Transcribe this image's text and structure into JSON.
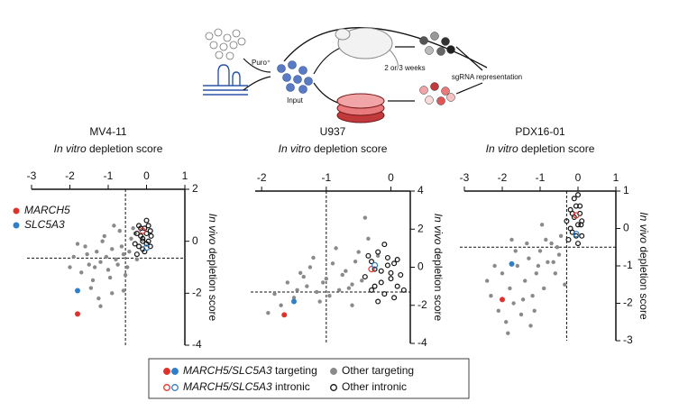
{
  "diagram": {
    "puro": "Puro⁺",
    "input": "Input",
    "weeks": "2 or 3 weeks",
    "readout": "sgRNA representation"
  },
  "chart_data": [
    {
      "type": "scatter",
      "title": "MV4-11",
      "xlabel_italic": "In vitro",
      "xlabel": "depletion score",
      "ylabel_italic": "In vivo",
      "ylabel": "depletion score",
      "xlim": [
        -3,
        1
      ],
      "xticks": [
        -3,
        -2,
        -1,
        0,
        1
      ],
      "ylim": [
        -4,
        2
      ],
      "yticks": [
        -4,
        -2,
        0,
        2
      ],
      "vline": -0.55,
      "hline": -0.65,
      "legend": "upper left",
      "series": [
        {
          "color": "#8a8a8a",
          "filled": true,
          "x": [
            -1.9,
            -1.7,
            -1.6,
            -1.5,
            -1.4,
            -1.3,
            -1.2,
            -1.1,
            -1.0,
            -0.9,
            -0.8,
            -0.7,
            -0.6,
            -0.5,
            -0.4,
            -1.8,
            -1.45,
            -1.25,
            -1.05,
            -0.95,
            -0.85,
            -0.75,
            -0.65,
            -0.55,
            -0.45,
            -1.35,
            -1.15,
            -0.35,
            -0.25,
            -2.0,
            -1.55,
            -0.6,
            -0.9,
            -1.2,
            -0.3
          ],
          "values": [
            -0.6,
            -1.2,
            -0.2,
            -0.9,
            -1.5,
            -0.4,
            -0.8,
            0.2,
            -1.1,
            -0.3,
            -0.7,
            0.4,
            -0.5,
            -1.0,
            0.1,
            -0.1,
            -1.8,
            -2.2,
            -0.6,
            -1.4,
            0.6,
            -0.9,
            -0.2,
            -1.3,
            -0.4,
            -1.0,
            0.0,
            0.5,
            -0.7,
            -1.0,
            -0.5,
            -1.9,
            -2.0,
            -2.5,
            0.3
          ]
        },
        {
          "color": "#111111",
          "filled": false,
          "x": [
            -0.25,
            -0.2,
            -0.15,
            -0.1,
            -0.05,
            0,
            0.05,
            0.1,
            -0.3,
            -0.2,
            -0.1,
            0,
            0.05,
            -0.15,
            -0.05,
            0.1,
            -0.25,
            0,
            -0.1,
            0.12
          ],
          "values": [
            0.3,
            -0.2,
            0.5,
            0.1,
            -0.4,
            0.3,
            0.0,
            0.4,
            -0.1,
            0.6,
            -0.3,
            -0.1,
            0.6,
            0.2,
            0.5,
            -0.2,
            -0.5,
            0.8,
            0.0,
            0.2
          ]
        },
        {
          "name": "MARCH5",
          "color": "#e0322b",
          "filled": true,
          "x": [
            -1.8
          ],
          "values": [
            -2.8
          ]
        },
        {
          "name": "SLC5A3",
          "color": "#2f7fc8",
          "filled": true,
          "x": [
            -1.8
          ],
          "values": [
            -1.9
          ]
        },
        {
          "color": "#e0322b",
          "filled": false,
          "x": [
            -0.1
          ],
          "values": [
            0.4
          ]
        },
        {
          "color": "#2f7fc8",
          "filled": false,
          "x": [
            0
          ],
          "values": [
            -0.25
          ]
        }
      ]
    },
    {
      "type": "scatter",
      "title": "U937",
      "xlabel_italic": "In vitro",
      "xlabel": "depletion score",
      "ylabel_italic": "In vivo",
      "ylabel": "depletion score",
      "xlim": [
        -2.1,
        0.3
      ],
      "xticks": [
        -2,
        -1,
        0
      ],
      "ylim": [
        -4,
        4
      ],
      "yticks": [
        -4,
        -2,
        0,
        2,
        4
      ],
      "vline": -1,
      "hline": -1.3,
      "series": [
        {
          "color": "#8a8a8a",
          "filled": true,
          "x": [
            -1.8,
            -1.6,
            -1.5,
            -1.4,
            -1.3,
            -1.2,
            -1.1,
            -1.0,
            -0.9,
            -0.8,
            -0.7,
            -0.6,
            -0.5,
            -1.7,
            -1.45,
            -1.25,
            -1.05,
            -0.95,
            -0.85,
            -0.75,
            -0.65,
            -0.55,
            -1.35,
            -1.15,
            -0.45,
            -0.35,
            -1.9,
            -0.4,
            -0.6,
            -0.2
          ],
          "values": [
            -1.4,
            -0.8,
            -1.6,
            -0.3,
            -1.0,
            0.5,
            -1.8,
            -0.6,
            0.2,
            -1.2,
            -0.2,
            -0.9,
            0.8,
            -2.0,
            -1.2,
            0.0,
            -0.8,
            -1.5,
            1.0,
            -0.4,
            -1.1,
            0.3,
            -0.5,
            -1.3,
            -0.7,
            1.5,
            -2.4,
            2.6,
            -2.0,
            0.6
          ]
        },
        {
          "color": "#111111",
          "filled": false,
          "x": [
            -0.4,
            -0.3,
            -0.25,
            -0.2,
            -0.15,
            -0.1,
            -0.05,
            0,
            0.05,
            0.1,
            -0.35,
            -0.2,
            -0.1,
            0,
            0.1,
            -0.3,
            -0.15,
            0.05,
            -0.05,
            0.15,
            -0.25,
            0.2
          ],
          "values": [
            -0.5,
            0.3,
            -1.0,
            0.8,
            -0.2,
            -1.4,
            0.5,
            -0.6,
            0.2,
            -1.0,
            0.6,
            -1.8,
            1.2,
            -0.3,
            0.4,
            -1.2,
            -0.8,
            -1.6,
            0.1,
            -0.4,
            -0.1,
            -1.2
          ]
        },
        {
          "color": "#e0322b",
          "filled": true,
          "x": [
            -1.65
          ],
          "values": [
            -2.5
          ]
        },
        {
          "color": "#2f7fc8",
          "filled": true,
          "x": [
            -1.5
          ],
          "values": [
            -1.8
          ]
        },
        {
          "color": "#e0322b",
          "filled": false,
          "x": [
            -0.3
          ],
          "values": [
            -0.1
          ]
        },
        {
          "color": "#2f7fc8",
          "filled": false,
          "x": [
            -0.25
          ],
          "values": [
            0.1
          ]
        }
      ]
    },
    {
      "type": "scatter",
      "title": "PDX16-01",
      "xlabel_italic": "In vitro",
      "xlabel": "depletion score",
      "ylabel_italic": "In vivo",
      "ylabel": "depletion score",
      "xlim": [
        -3,
        1
      ],
      "xticks": [
        -3,
        -2,
        -1,
        0,
        1
      ],
      "ylim": [
        -3,
        1
      ],
      "yticks": [
        -3,
        -2,
        -1,
        0,
        1
      ],
      "vline": -0.3,
      "hline": -0.5,
      "series": [
        {
          "color": "#8a8a8a",
          "filled": true,
          "x": [
            -2.3,
            -2.1,
            -2.0,
            -1.9,
            -1.8,
            -1.7,
            -1.6,
            -1.5,
            -1.4,
            -1.3,
            -1.2,
            -1.1,
            -1.0,
            -0.9,
            -0.8,
            -0.7,
            -0.6,
            -0.5,
            -2.2,
            -1.85,
            -1.65,
            -1.45,
            -1.25,
            -1.05,
            -0.85,
            -0.65,
            -0.45,
            -0.35,
            -1.75,
            -1.35,
            -0.95,
            -0.55,
            -2.4,
            -1.15
          ],
          "values": [
            -1.8,
            -2.2,
            -1.2,
            -2.5,
            -1.6,
            -2.0,
            -1.0,
            -2.3,
            -1.4,
            -0.8,
            -1.8,
            -1.2,
            -0.6,
            -1.6,
            -0.9,
            -0.4,
            -1.2,
            -0.7,
            -1.0,
            -2.8,
            -0.6,
            -1.9,
            -2.6,
            -1.0,
            -0.3,
            -0.9,
            -0.2,
            -1.5,
            -0.3,
            -0.4,
            0.1,
            -0.5,
            -1.4,
            -2.2
          ]
        },
        {
          "color": "#111111",
          "filled": false,
          "x": [
            -0.3,
            -0.2,
            -0.15,
            -0.1,
            -0.05,
            0,
            0.05,
            0.1,
            -0.25,
            -0.1,
            0,
            0.1,
            -0.2,
            -0.05,
            0.05,
            0.08,
            -0.15,
            0
          ],
          "values": [
            0.2,
            0.5,
            -0.1,
            0.3,
            0.6,
            0.1,
            0.4,
            -0.2,
            -0.3,
            0.8,
            -0.4,
            0.2,
            0.0,
            -0.2,
            0.6,
            0.1,
            0.4,
            0.9
          ]
        },
        {
          "color": "#e0322b",
          "filled": true,
          "x": [
            -2.0
          ],
          "values": [
            -1.9
          ]
        },
        {
          "color": "#2f7fc8",
          "filled": true,
          "x": [
            -1.75
          ],
          "values": [
            -0.95
          ]
        },
        {
          "color": "#e0322b",
          "filled": false,
          "x": [
            -0.05
          ],
          "values": [
            0.35
          ]
        },
        {
          "color": "#2f7fc8",
          "filled": false,
          "x": [
            -0.05
          ],
          "values": [
            -0.15
          ]
        }
      ]
    }
  ],
  "legend": [
    {
      "genes": "MARCH5/SLC5A3",
      "label": "targeting"
    },
    {
      "genes": "MARCH5/SLC5A3",
      "label": "intronic"
    },
    {
      "label": "Other targeting"
    },
    {
      "label": "Other intronic"
    }
  ]
}
